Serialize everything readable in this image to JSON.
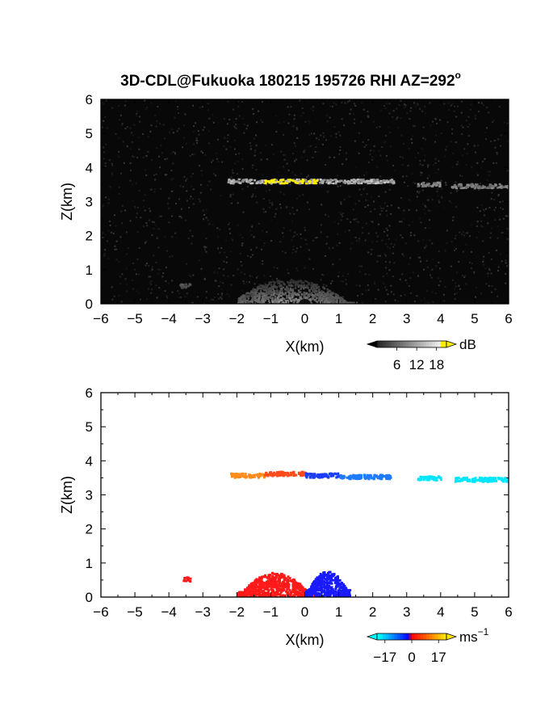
{
  "title": "3D-CDL@Fukuoka 180215 195726 RHI AZ=292",
  "title_degree": "o",
  "chart_data": [
    {
      "type": "heatmap",
      "name": "reflectivity",
      "xlabel": "X(km)",
      "ylabel": "Z(km)",
      "xlim": [
        -6,
        6
      ],
      "ylim": [
        0,
        6
      ],
      "xticks": [
        "-6",
        "-5",
        "-4",
        "-3",
        "-2",
        "-1",
        "0",
        "1",
        "2",
        "3",
        "4",
        "5",
        "6"
      ],
      "yticks": [
        "0",
        "1",
        "2",
        "3",
        "4",
        "5",
        "6"
      ],
      "colorbar": {
        "unit": "dB",
        "ticks": [
          "6",
          "12",
          "18"
        ],
        "tick_values": [
          6,
          12,
          18
        ],
        "range": [
          0,
          21
        ]
      },
      "features": [
        {
          "kind": "cloud-layer",
          "x": [
            -2.3,
            2.6
          ],
          "z": 3.62,
          "peak_x": [
            -1.2,
            0.4
          ],
          "peak_db": 19
        },
        {
          "kind": "cloud-layer",
          "x": [
            3.3,
            4.0
          ],
          "z": 3.53,
          "peak_db": 13
        },
        {
          "kind": "cloud-layer",
          "x": [
            4.3,
            6.0
          ],
          "z": 3.48,
          "peak_db": 12
        },
        {
          "kind": "near-ground-echo",
          "x": [
            -2.0,
            1.5
          ],
          "z": [
            0.0,
            0.75
          ],
          "peak_db": 14
        },
        {
          "kind": "weak-streak",
          "x": [
            -3.7,
            -3.4
          ],
          "z": 0.55,
          "peak_db": 6
        }
      ]
    },
    {
      "type": "scatter",
      "name": "doppler-velocity",
      "xlabel": "X(km)",
      "ylabel": "Z(km)",
      "xlim": [
        -6,
        6
      ],
      "ylim": [
        0,
        6
      ],
      "xticks": [
        "-6",
        "-5",
        "-4",
        "-3",
        "-2",
        "-1",
        "0",
        "1",
        "2",
        "3",
        "4",
        "5",
        "6"
      ],
      "yticks": [
        "0",
        "1",
        "2",
        "3",
        "4",
        "5",
        "6"
      ],
      "colorbar": {
        "unit": "ms",
        "unit_exponent": "−1",
        "ticks": [
          "−17",
          "0",
          "17"
        ],
        "tick_values": [
          -17,
          0,
          17
        ],
        "range": [
          -22,
          22
        ]
      },
      "features": [
        {
          "kind": "layer-toward",
          "x": [
            -2.2,
            -1.2
          ],
          "z": 3.6,
          "velocity": 9,
          "color": "#ff8c1a"
        },
        {
          "kind": "layer-toward",
          "x": [
            -1.2,
            0.0
          ],
          "z": 3.65,
          "velocity": 5,
          "color": "#ff4a1a"
        },
        {
          "kind": "layer-away",
          "x": [
            0.0,
            1.0
          ],
          "z": 3.6,
          "velocity": -10,
          "color": "#1a3cff"
        },
        {
          "kind": "layer-away",
          "x": [
            1.0,
            2.5
          ],
          "z": 3.56,
          "velocity": -12,
          "color": "#1e7aff"
        },
        {
          "kind": "layer-away",
          "x": [
            3.3,
            4.0
          ],
          "z": 3.52,
          "velocity": -18,
          "color": "#00e5ff"
        },
        {
          "kind": "layer-away",
          "x": [
            4.4,
            6.0
          ],
          "z": 3.48,
          "velocity": -18,
          "color": "#00e5ff"
        },
        {
          "kind": "ground-echo-toward",
          "x": [
            -2.0,
            0.2
          ],
          "z": [
            0.0,
            0.75
          ],
          "velocity": 4,
          "color": "#ff1a1a"
        },
        {
          "kind": "ground-echo-away",
          "x": [
            0.0,
            1.3
          ],
          "z": [
            0.05,
            0.8
          ],
          "velocity": -6,
          "color": "#1a1aff"
        },
        {
          "kind": "isolated-echo",
          "x": [
            -3.6,
            -3.4
          ],
          "z": 0.55,
          "velocity": 4,
          "color": "#ff1a1a"
        }
      ]
    }
  ]
}
